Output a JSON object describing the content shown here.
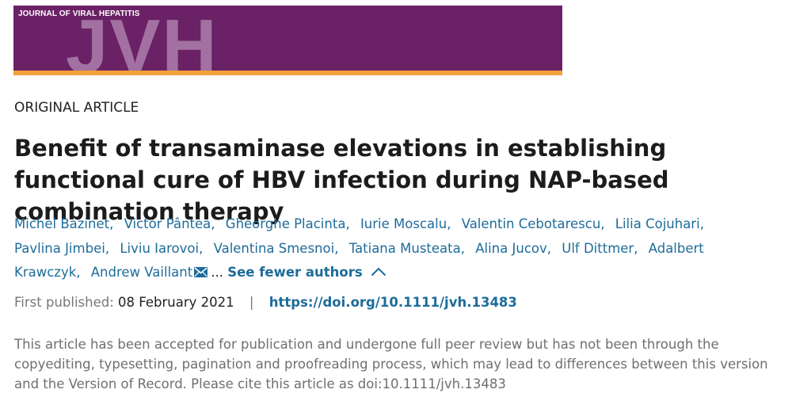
{
  "journal": {
    "name": "JOURNAL OF VIRAL HEPATITIS",
    "logo_text": "JVH",
    "banner_color": "#6b2166",
    "stripe_color": "#f2a03a"
  },
  "article": {
    "type": "ORIGINAL ARTICLE",
    "title": "Benefit of transaminase elevations in establishing functional cure of HBV infection during NAP-based combination therapy",
    "authors": [
      "Michel Bazinet",
      "Victor Pântea",
      "Gheorghe Placinta",
      "Iurie Moscalu",
      "Valentin Cebotarescu",
      "Lilia Cojuhari",
      "Pavlina Jimbei",
      "Liviu Iarovoi",
      "Valentina Smesnoi",
      "Tatiana Musteata",
      "Alina Jucov",
      "Ulf Dittmer",
      "Adalbert Krawczyk",
      "Andrew Vaillant"
    ],
    "author_separator": ",",
    "corresponding_icon": "envelope-icon",
    "ellipsis": "...",
    "see_fewer_label": "See fewer authors",
    "toggle_icon": "chevron-up-icon",
    "first_published_label": "First published:",
    "first_published_date": "08 February 2021",
    "divider": "|",
    "doi": "https://doi.org/10.1111/jvh.13483",
    "notice": "This article has been accepted for publication and undergone full peer review but has not been through the copyediting, typesetting, pagination and proofreading process, which may lead to differences between this version and the Version of Record. Please cite this article as doi:10.1111/jvh.13483",
    "link_color": "#1e6c9a"
  }
}
